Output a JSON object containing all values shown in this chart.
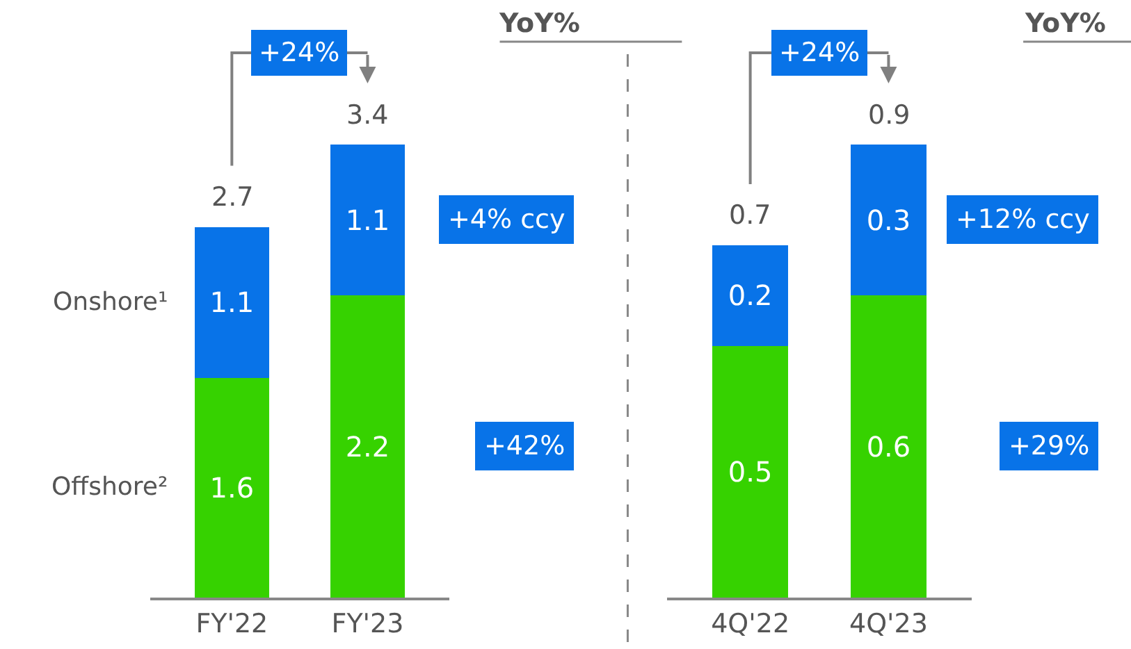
{
  "chart_data": [
    {
      "type": "bar",
      "stacked": true,
      "categories": [
        "FY'22",
        "FY'23"
      ],
      "legend": false,
      "data_labels": true,
      "totals": [
        "2.7",
        "3.4"
      ],
      "annotations": [
        "+24%",
        "YoY%",
        "+4% ccy",
        "+42%"
      ],
      "series": [
        {
          "name": "Offshore²",
          "color": "#36d200",
          "values": [
            1.6,
            2.2
          ]
        },
        {
          "name": "Onshore¹",
          "color": "#0873e8",
          "values": [
            1.1,
            1.1
          ]
        }
      ]
    },
    {
      "type": "bar",
      "stacked": true,
      "categories": [
        "4Q'22",
        "4Q'23"
      ],
      "legend": false,
      "data_labels": true,
      "totals": [
        "0.7",
        "0.9"
      ],
      "annotations": [
        "+24%",
        "YoY%",
        "+12% ccy",
        "+29%"
      ],
      "series": [
        {
          "color": "#36d200",
          "values": [
            0.5,
            0.6
          ]
        },
        {
          "color": "#0873e8",
          "values": [
            0.2,
            0.3
          ]
        }
      ]
    }
  ]
}
